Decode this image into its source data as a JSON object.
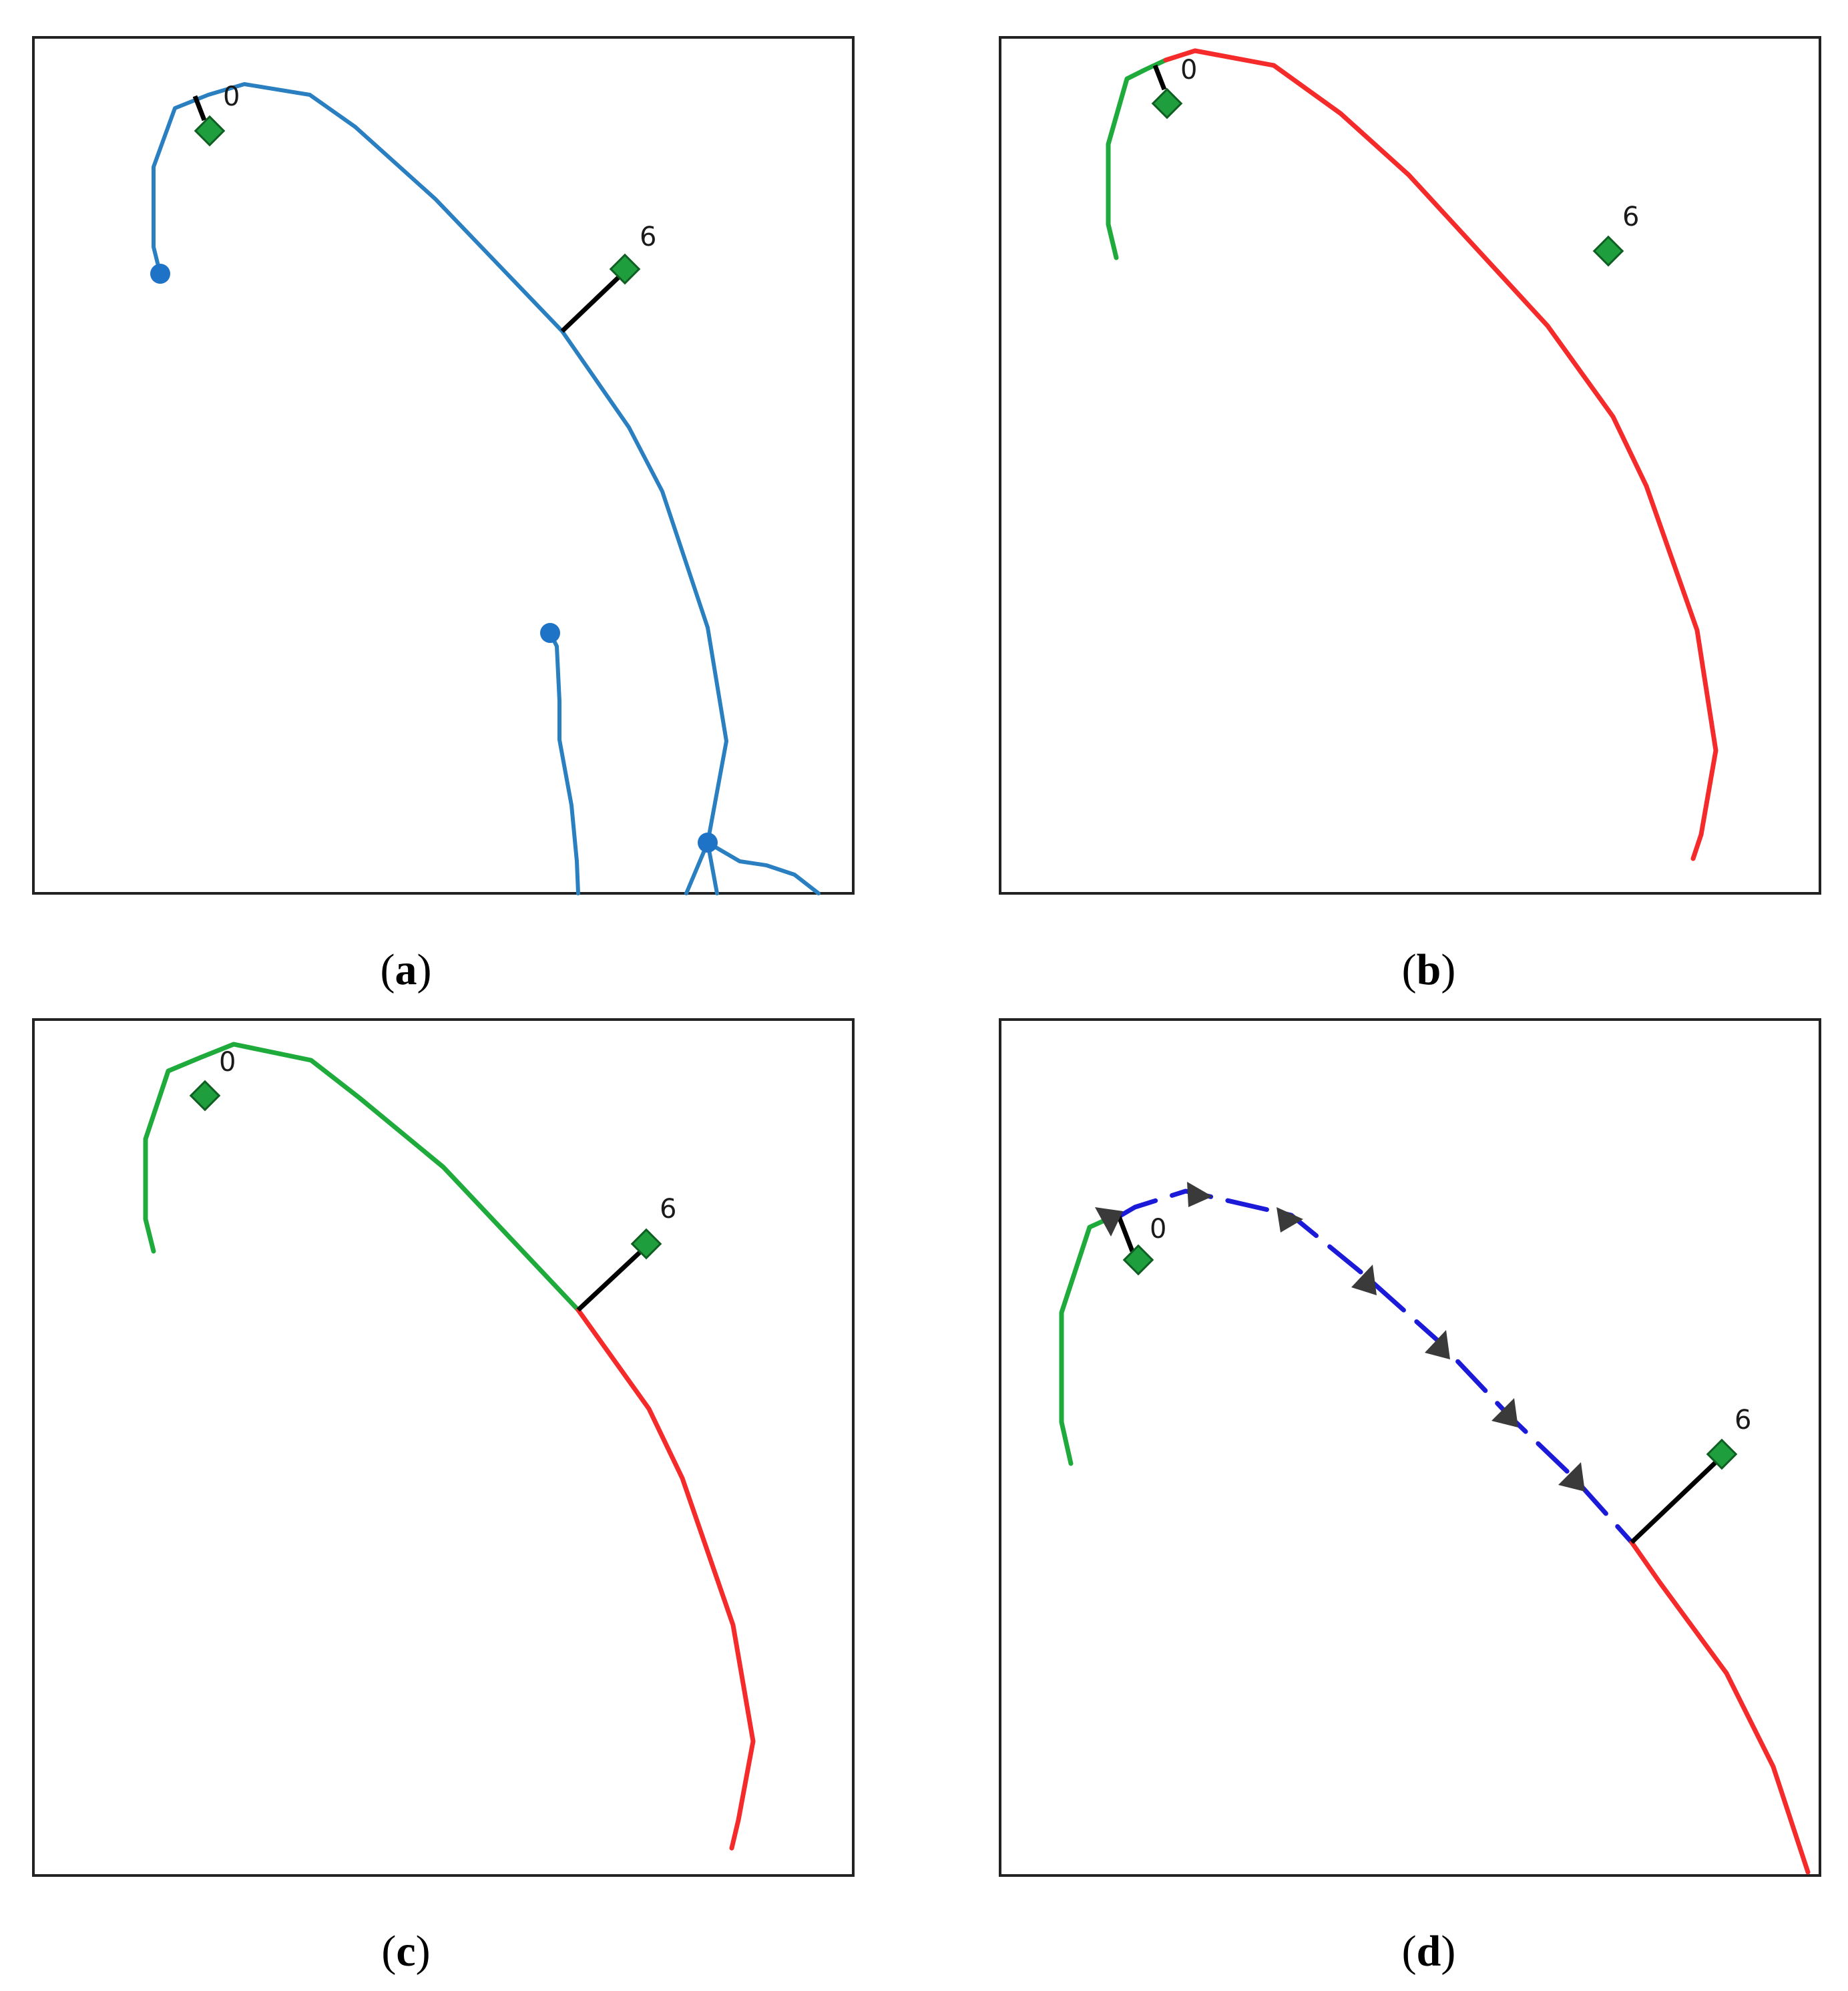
{
  "colors": {
    "network": "#2a7fc1",
    "node": "#1f73c6",
    "traversed": "#1faa3c",
    "remaining": "#f52a2a",
    "candidate": "#1a1ad8",
    "stop": "#1e9e3c",
    "link": "#000000",
    "arrow": "#3a3a3a"
  },
  "panels": [
    {
      "id": "a",
      "caption": {
        "open": "(",
        "letter": "a",
        "close": ")"
      },
      "stops": [
        {
          "label": "0"
        },
        {
          "label": "6"
        }
      ]
    },
    {
      "id": "b",
      "caption": {
        "open": "(",
        "letter": "b",
        "close": ")"
      },
      "stops": [
        {
          "label": "0"
        },
        {
          "label": "6"
        }
      ]
    },
    {
      "id": "c",
      "caption": {
        "open": "(",
        "letter": "c",
        "close": ")"
      },
      "stops": [
        {
          "label": "0"
        },
        {
          "label": "6"
        }
      ]
    },
    {
      "id": "d",
      "caption": {
        "open": "(",
        "letter": "d",
        "close": ")"
      },
      "stops": [
        {
          "label": "0"
        },
        {
          "label": "6"
        }
      ]
    }
  ]
}
